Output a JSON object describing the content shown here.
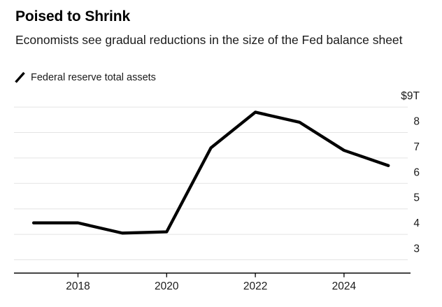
{
  "chart_data": {
    "type": "line",
    "title": "Poised to Shrink",
    "subtitle": "Economists see gradual reductions in the size of the Fed balance sheet",
    "series": [
      {
        "name": "Federal reserve total assets",
        "x": [
          2017,
          2018,
          2019,
          2020,
          2021,
          2022,
          2023,
          2024,
          2025
        ],
        "values": [
          4.45,
          4.45,
          4.05,
          4.1,
          7.4,
          8.8,
          8.4,
          7.3,
          6.7
        ]
      }
    ],
    "x_ticks": [
      {
        "value": 2018,
        "label": "2018"
      },
      {
        "value": 2020,
        "label": "2020"
      },
      {
        "value": 2022,
        "label": "2022"
      },
      {
        "value": 2024,
        "label": "2024"
      }
    ],
    "y_ticks": [
      {
        "value": 9,
        "label": "$9T"
      },
      {
        "value": 8,
        "label": "8"
      },
      {
        "value": 7,
        "label": "7"
      },
      {
        "value": 6,
        "label": "6"
      },
      {
        "value": 5,
        "label": "5"
      },
      {
        "value": 4,
        "label": "4"
      },
      {
        "value": 3,
        "label": "3"
      }
    ],
    "xlim": [
      2016.5,
      2025.5
    ],
    "ylim": [
      2.5,
      9
    ],
    "grid": "horizontal",
    "legend_position": "top-left",
    "axis_label_side": "right",
    "colors": {
      "line": "#000000",
      "grid": "#e4e4e4",
      "axis": "#000000",
      "tick_text": "#1a1a1a"
    }
  }
}
